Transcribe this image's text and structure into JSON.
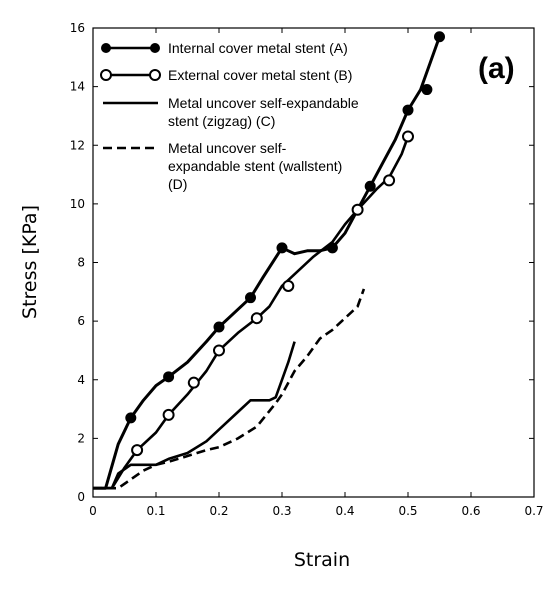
{
  "chart_data": {
    "type": "line",
    "panel_label": "(a)",
    "xlabel": "Strain",
    "ylabel": "Stress [KPa]",
    "xlim": [
      0,
      0.7
    ],
    "ylim": [
      0,
      16
    ],
    "xticks": [
      "0",
      "0.1",
      "0.2",
      "0.3",
      "0.4",
      "0.5",
      "0.6",
      "0.7"
    ],
    "yticks": [
      "0",
      "2",
      "4",
      "6",
      "8",
      "10",
      "12",
      "14",
      "16"
    ],
    "grid": false,
    "legend_position": "top-left",
    "series": [
      {
        "name": "Internal cover metal stent (A)",
        "line_style": "solid",
        "marker": "filled-circle",
        "color": "#000000",
        "x": [
          0.0,
          0.02,
          0.04,
          0.06,
          0.08,
          0.1,
          0.12,
          0.15,
          0.18,
          0.2,
          0.22,
          0.25,
          0.27,
          0.3,
          0.31,
          0.32,
          0.34,
          0.36,
          0.38,
          0.4,
          0.42,
          0.44,
          0.46,
          0.48,
          0.5,
          0.52,
          0.55
        ],
        "y": [
          0.3,
          0.3,
          1.8,
          2.7,
          3.3,
          3.8,
          4.1,
          4.6,
          5.3,
          5.8,
          6.2,
          6.8,
          7.5,
          8.5,
          8.4,
          8.3,
          8.4,
          8.4,
          8.5,
          9.0,
          9.8,
          10.6,
          11.4,
          12.2,
          13.2,
          13.9,
          15.7
        ],
        "markers_x": [
          0.06,
          0.12,
          0.2,
          0.25,
          0.3,
          0.38,
          0.44,
          0.5,
          0.53,
          0.55
        ],
        "markers_y": [
          2.7,
          4.1,
          5.8,
          6.8,
          8.5,
          8.5,
          10.6,
          13.2,
          13.9,
          15.7
        ]
      },
      {
        "name": "External cover metal stent (B)",
        "line_style": "solid",
        "marker": "open-circle",
        "color": "#000000",
        "x": [
          0.0,
          0.03,
          0.05,
          0.07,
          0.1,
          0.12,
          0.15,
          0.18,
          0.2,
          0.23,
          0.26,
          0.28,
          0.3,
          0.32,
          0.35,
          0.38,
          0.4,
          0.42,
          0.45,
          0.47,
          0.49,
          0.5
        ],
        "y": [
          0.3,
          0.3,
          1.0,
          1.6,
          2.2,
          2.8,
          3.5,
          4.3,
          5.0,
          5.6,
          6.1,
          6.5,
          7.2,
          7.6,
          8.2,
          8.7,
          9.3,
          9.8,
          10.5,
          10.9,
          11.7,
          12.3
        ],
        "markers_x": [
          0.07,
          0.12,
          0.16,
          0.2,
          0.26,
          0.31,
          0.42,
          0.47,
          0.5
        ],
        "markers_y": [
          1.6,
          2.8,
          3.9,
          5.0,
          6.1,
          7.2,
          9.8,
          10.8,
          12.3
        ]
      },
      {
        "name": "Metal uncover self-expandable stent (zigzag) (C)",
        "legend_lines": [
          "Metal uncover self-expandable",
          "stent (zigzag) (C)"
        ],
        "line_style": "solid",
        "marker": "none",
        "color": "#000000",
        "x": [
          0.0,
          0.03,
          0.04,
          0.06,
          0.08,
          0.1,
          0.12,
          0.15,
          0.18,
          0.2,
          0.23,
          0.25,
          0.28,
          0.29,
          0.3,
          0.31,
          0.32
        ],
        "y": [
          0.3,
          0.3,
          0.8,
          1.1,
          1.1,
          1.1,
          1.3,
          1.5,
          1.9,
          2.3,
          2.9,
          3.3,
          3.3,
          3.4,
          4.0,
          4.6,
          5.3
        ]
      },
      {
        "name": "Metal uncover self-expandable stent (wallstent) (D)",
        "legend_lines": [
          "Metal uncover self-",
          "expandable stent (wallstent)",
          "(D)"
        ],
        "line_style": "dashed",
        "marker": "none",
        "color": "#000000",
        "x": [
          0.0,
          0.04,
          0.06,
          0.08,
          0.1,
          0.12,
          0.15,
          0.18,
          0.2,
          0.23,
          0.26,
          0.29,
          0.3,
          0.32,
          0.34,
          0.36,
          0.38,
          0.4,
          0.42,
          0.43
        ],
        "y": [
          0.3,
          0.3,
          0.6,
          0.9,
          1.1,
          1.2,
          1.4,
          1.6,
          1.7,
          2.0,
          2.4,
          3.2,
          3.5,
          4.3,
          4.8,
          5.4,
          5.7,
          6.1,
          6.5,
          7.1
        ]
      }
    ]
  }
}
